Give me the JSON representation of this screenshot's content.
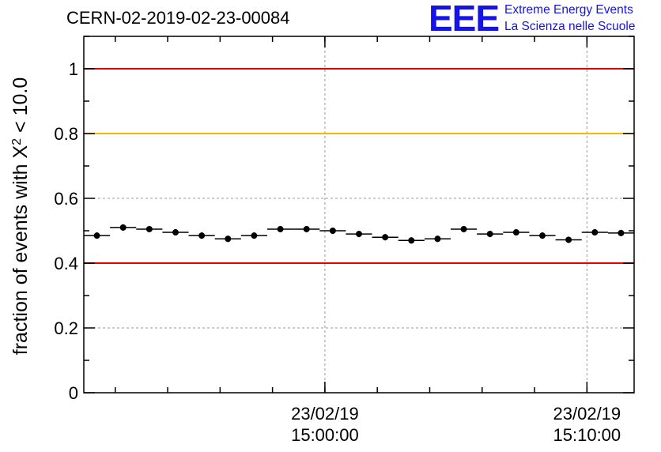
{
  "header": {
    "run_id": "CERN-02-2019-02-23-00084",
    "logo_mark": "EEE",
    "logo_line1": "Extreme Energy Events",
    "logo_line2": "La Scienza nelle Scuole"
  },
  "chart_data": {
    "type": "scatter",
    "title": "CERN-02-2019-02-23-00084",
    "ylabel_prefix": "fraction of events with ",
    "ylabel_symbol": "X",
    "ylabel_superscript": "2",
    "ylabel_suffix": " < 10.0",
    "xlabel": "",
    "ylim": [
      0,
      1.1
    ],
    "xlim_minutes": [
      -9.2,
      11.8
    ],
    "y_ticks": [
      {
        "value": 0,
        "label": "0"
      },
      {
        "value": 0.2,
        "label": "0.2"
      },
      {
        "value": 0.4,
        "label": "0.4"
      },
      {
        "value": 0.6,
        "label": "0.6"
      },
      {
        "value": 0.8,
        "label": "0.8"
      },
      {
        "value": 1,
        "label": "1"
      }
    ],
    "x_ticks": [
      {
        "minutes": 0,
        "date": "23/02/19",
        "time": "15:00:00"
      },
      {
        "minutes": 10,
        "date": "23/02/19",
        "time": "15:10:00"
      }
    ],
    "grid": true,
    "reference_lines": [
      {
        "y": 1.0,
        "color": "#e60000"
      },
      {
        "y": 0.8,
        "color": "#f5b800"
      },
      {
        "y": 0.4,
        "color": "#e60000"
      }
    ],
    "bin_width_minutes": 1,
    "series": [
      {
        "name": "fraction",
        "color": "#000000",
        "x_minutes": [
          -8.7,
          -7.7,
          -6.7,
          -5.7,
          -4.7,
          -3.7,
          -2.7,
          -1.7,
          -0.7,
          0.3,
          1.3,
          2.3,
          3.3,
          4.3,
          5.3,
          6.3,
          7.3,
          8.3,
          9.3,
          10.3,
          11.3
        ],
        "values": [
          0.485,
          0.51,
          0.505,
          0.495,
          0.485,
          0.475,
          0.485,
          0.505,
          0.505,
          0.5,
          0.49,
          0.48,
          0.47,
          0.475,
          0.505,
          0.49,
          0.495,
          0.485,
          0.472,
          0.495,
          0.493
        ]
      }
    ]
  }
}
